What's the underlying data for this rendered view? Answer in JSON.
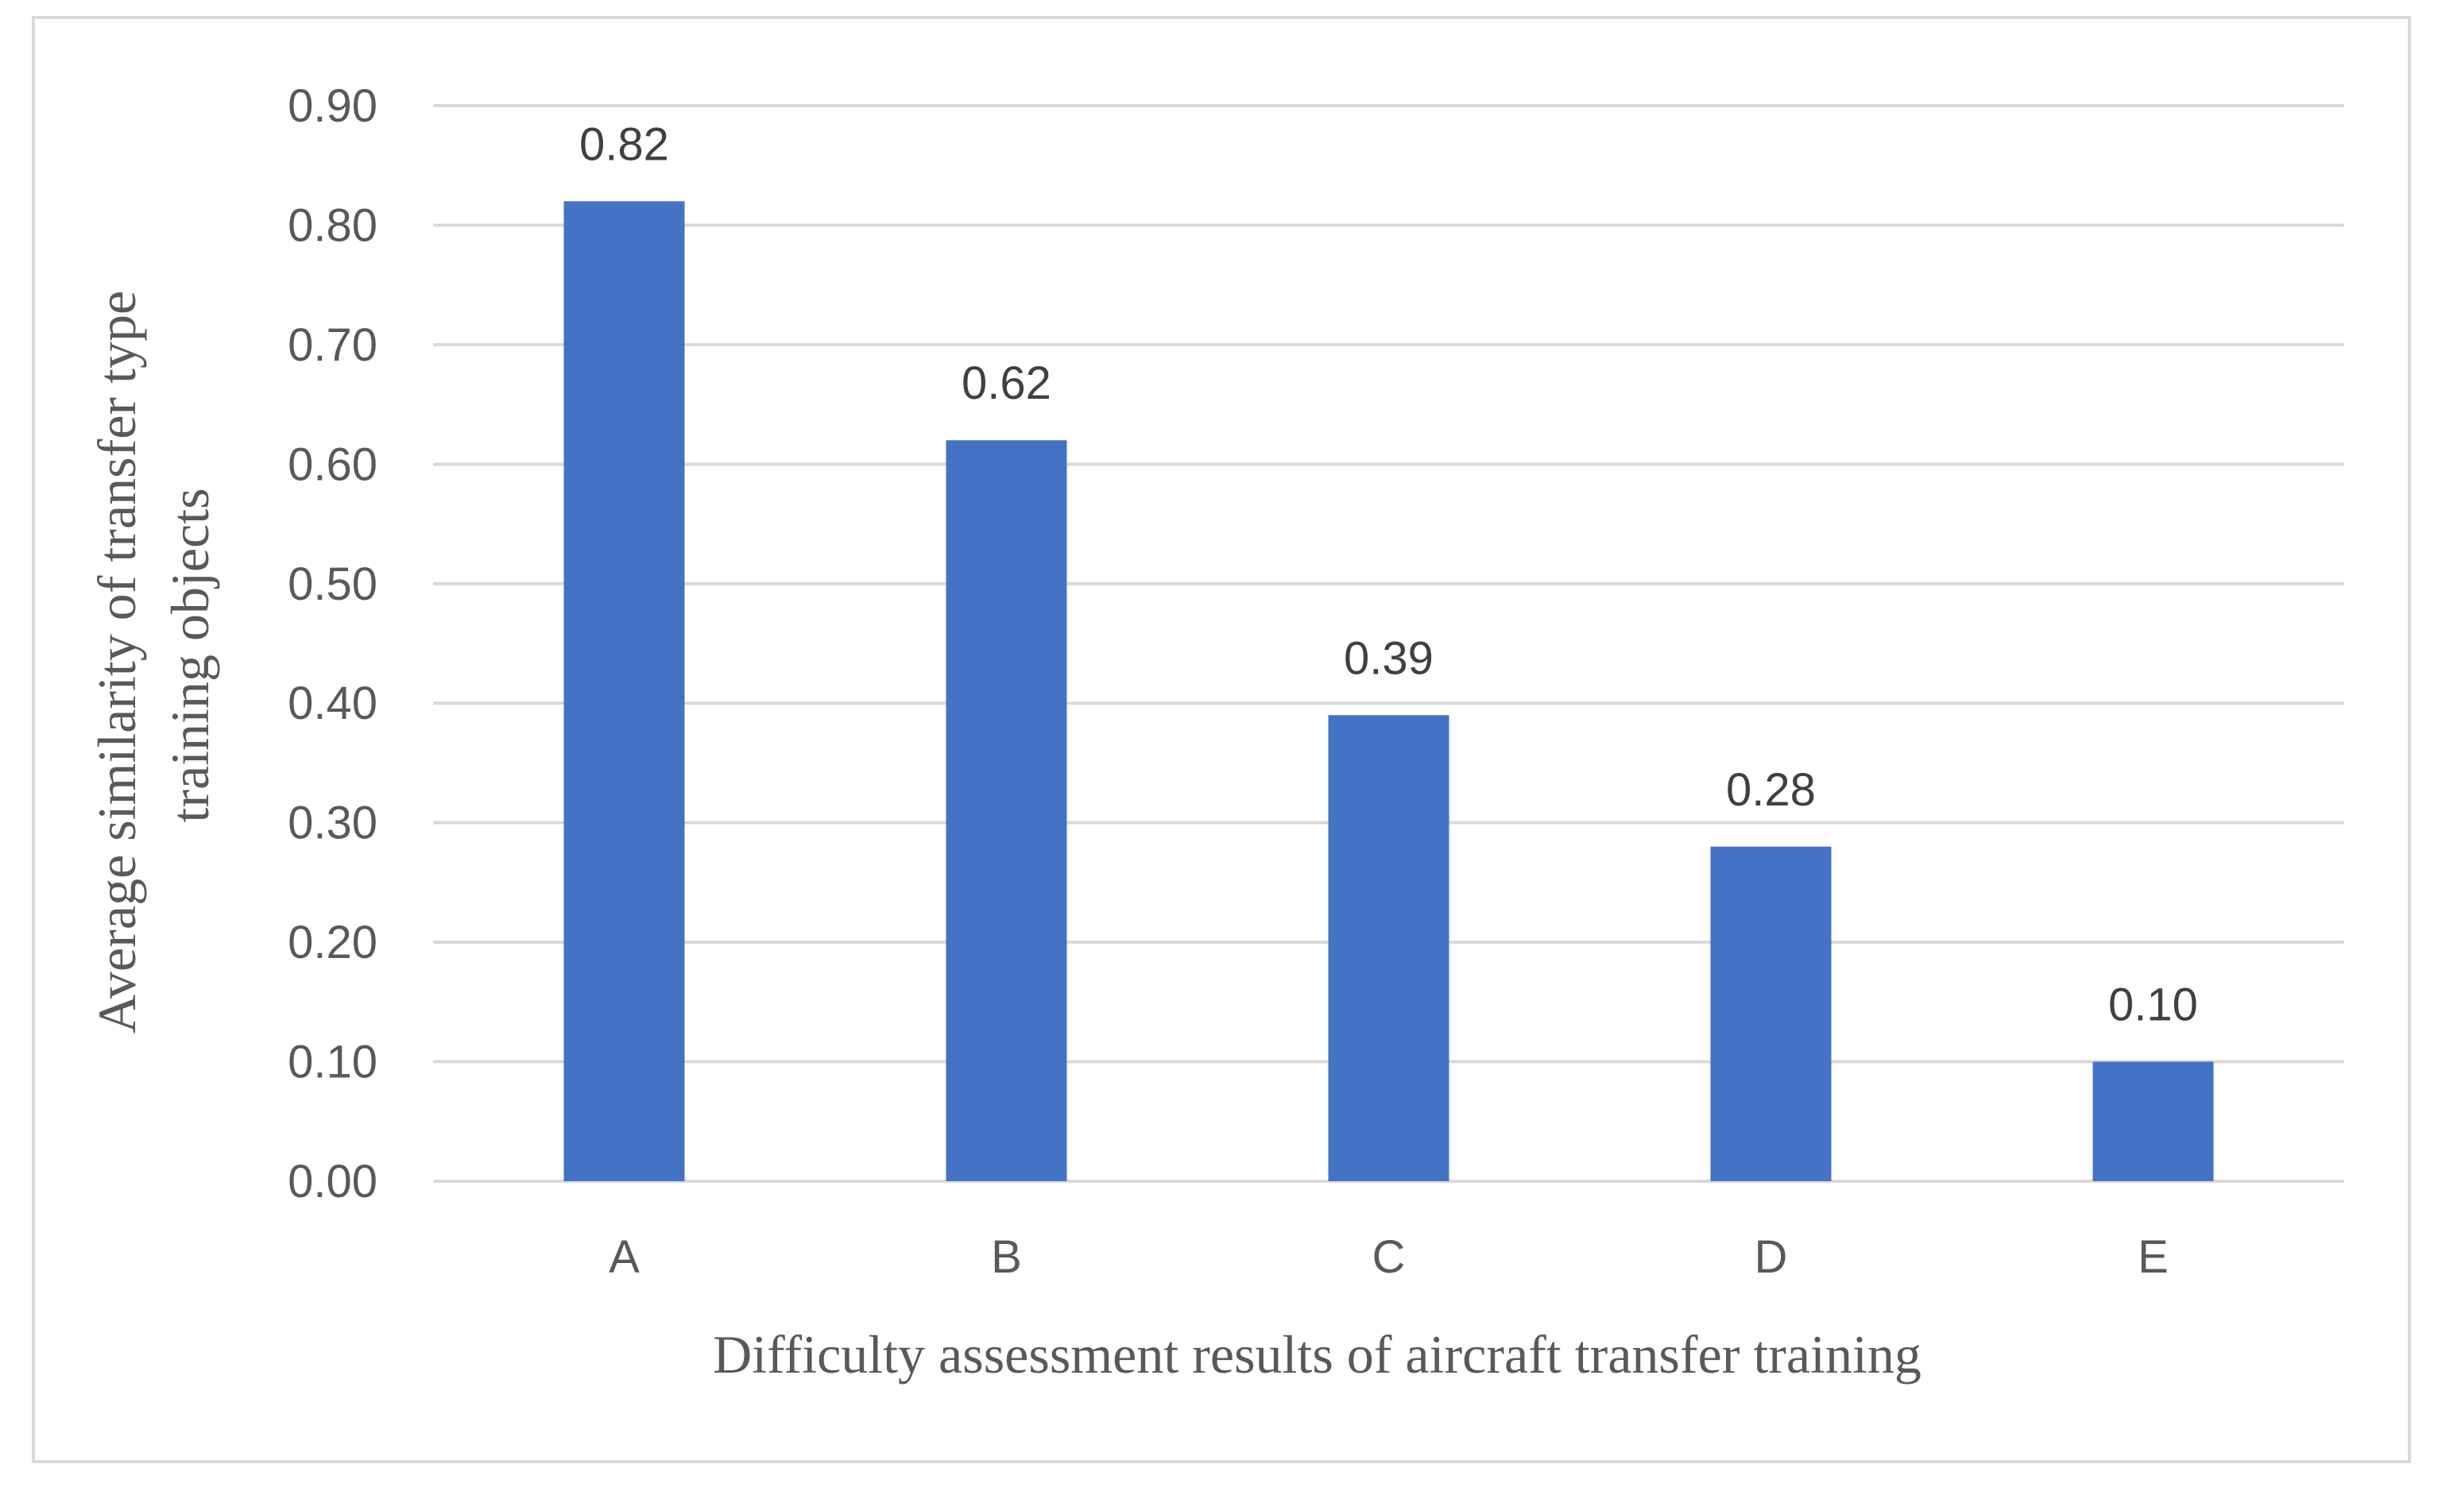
{
  "chart_data": {
    "type": "bar",
    "title": "",
    "categories": [
      "A",
      "B",
      "C",
      "D",
      "E"
    ],
    "values": [
      0.82,
      0.62,
      0.39,
      0.28,
      0.1
    ],
    "data_labels": [
      "0.82",
      "0.62",
      "0.39",
      "0.28",
      "0.10"
    ],
    "xlabel": "Difficulty assessment results of aircraft transfer training",
    "ylabel_lines": [
      "Average similarity of transfer type",
      "training objects"
    ],
    "ylim": [
      0,
      0.9
    ],
    "yticks": [
      0.0,
      0.1,
      0.2,
      0.3,
      0.4,
      0.5,
      0.6,
      0.7,
      0.8,
      0.9
    ],
    "ytick_labels": [
      "0.00",
      "0.10",
      "0.20",
      "0.30",
      "0.40",
      "0.50",
      "0.60",
      "0.70",
      "0.80",
      "0.90"
    ],
    "grid": true,
    "bar_color": "#4472c4",
    "grid_color": "#d9d9d9"
  }
}
